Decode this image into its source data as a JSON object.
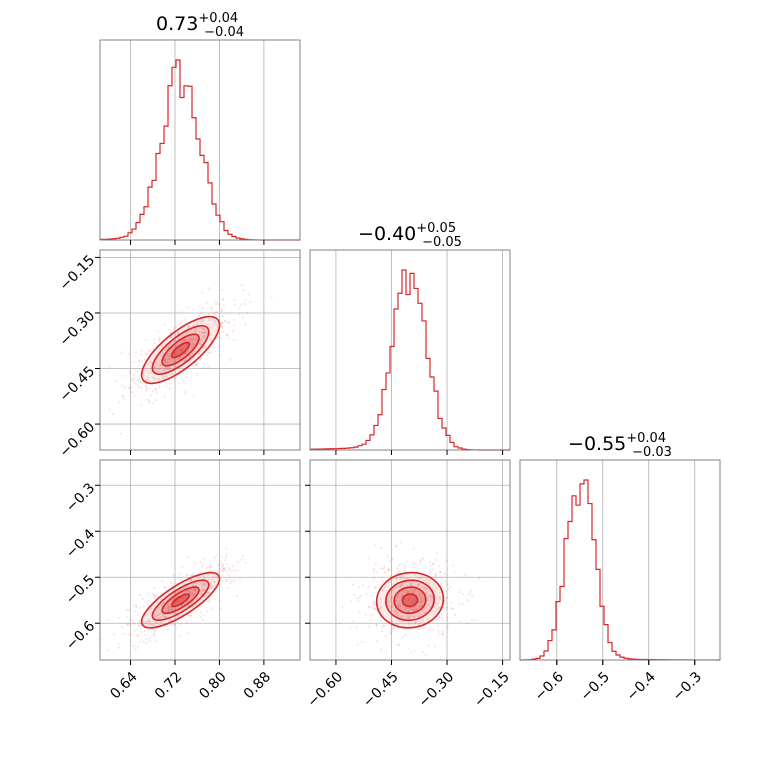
{
  "chart_data": {
    "type": "corner",
    "color": "#d62728",
    "grid": true,
    "parameters": [
      {
        "median": "0.73",
        "plus": "+0.04",
        "minus": "−0.04",
        "median_value": 0.73,
        "sigma": 0.035,
        "range": [
          0.585,
          0.945
        ]
      },
      {
        "median": "−0.40",
        "plus": "+0.05",
        "minus": "−0.05",
        "median_value": -0.4,
        "sigma": 0.045,
        "range": [
          -0.67,
          -0.13
        ]
      },
      {
        "median": "−0.55",
        "plus": "+0.04",
        "minus": "−0.03",
        "median_value": -0.55,
        "sigma": 0.03,
        "range": [
          -0.68,
          -0.245
        ]
      }
    ],
    "ticks": {
      "p0": [
        {
          "v": 0.64,
          "label": "0.64"
        },
        {
          "v": 0.72,
          "label": "0.72"
        },
        {
          "v": 0.8,
          "label": "0.80"
        },
        {
          "v": 0.88,
          "label": "0.88"
        }
      ],
      "p1": [
        {
          "v": -0.6,
          "label": "−0.60"
        },
        {
          "v": -0.45,
          "label": "−0.45"
        },
        {
          "v": -0.3,
          "label": "−0.30"
        },
        {
          "v": -0.15,
          "label": "−0.15"
        }
      ],
      "p2": [
        {
          "v": -0.6,
          "label": "−0.6"
        },
        {
          "v": -0.5,
          "label": "−0.5"
        },
        {
          "v": -0.4,
          "label": "−0.4"
        },
        {
          "v": -0.3,
          "label": "−0.3"
        }
      ]
    },
    "correlations": {
      "p0_p1": 0.75,
      "p0_p2": 0.78,
      "p1_p2": 0.05
    }
  }
}
